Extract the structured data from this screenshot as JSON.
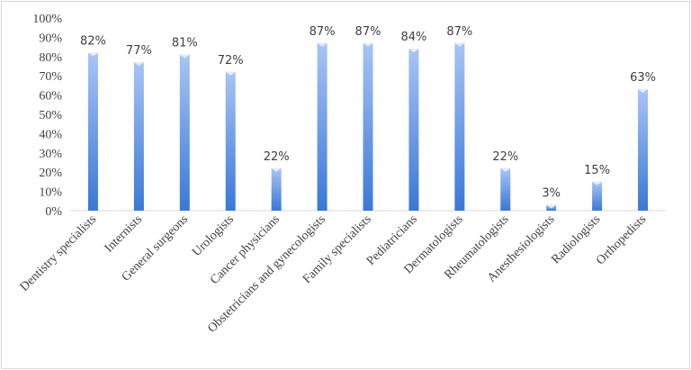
{
  "chart_data": {
    "type": "bar",
    "title": "",
    "xlabel": "",
    "ylabel": "",
    "ylim": [
      0,
      100
    ],
    "y_ticks": [
      "0%",
      "10%",
      "20%",
      "30%",
      "40%",
      "50%",
      "60%",
      "70%",
      "80%",
      "90%",
      "100%"
    ],
    "grid": false,
    "legend": "none",
    "bar_color_top": "#a9c4f5",
    "bar_color_bottom": "#3a78d6",
    "categories": [
      "Dentistry specialists",
      "Internists",
      "General surgeons",
      "Urologists",
      "Cancer physicians",
      "Obstetricians and gynecologists",
      "Family specialists",
      "Pediatricians",
      "Dermatologists",
      "Rheumatologists",
      "Anesthesiologists",
      "Radiologists",
      "Orthopedists"
    ],
    "values": [
      82,
      77,
      81,
      72,
      22,
      87,
      87,
      84,
      87,
      22,
      3,
      15,
      63
    ],
    "data_labels": [
      "82%",
      "77%",
      "81%",
      "72%",
      "22%",
      "87%",
      "87%",
      "84%",
      "87%",
      "22%",
      "3%",
      "15%",
      "63%"
    ]
  }
}
